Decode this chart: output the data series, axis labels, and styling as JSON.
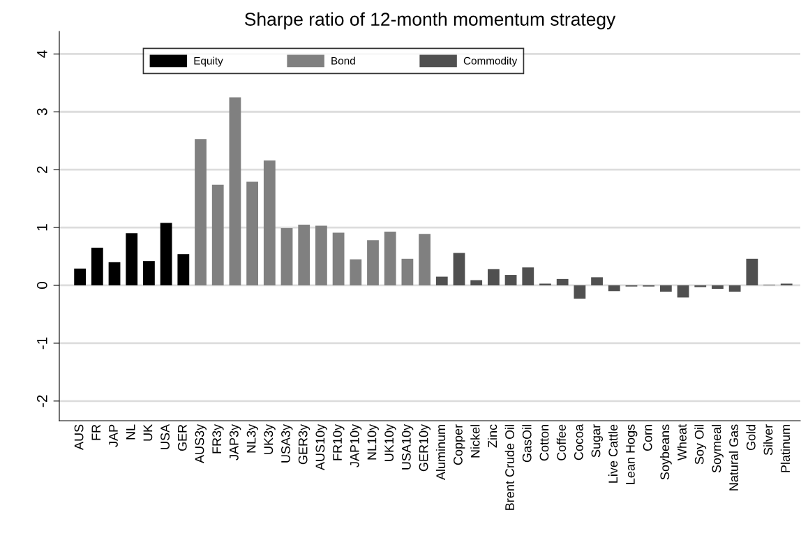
{
  "chart_data": {
    "type": "bar",
    "title": "Sharpe ratio of 12-month momentum strategy",
    "categories": [
      "AUS",
      "FR",
      "JAP",
      "NL",
      "UK",
      "USA",
      "GER",
      "AUS3y",
      "FR3y",
      "JAP3y",
      "NL3y",
      "UK3y",
      "USA3y",
      "GER3y",
      "AUS10y",
      "FR10y",
      "JAP10y",
      "NL10y",
      "UK10y",
      "USA10y",
      "GER10y",
      "Aluminum",
      "Copper",
      "Nickel",
      "Zinc",
      "Brent Crude Oil",
      "GasOil",
      "Cotton",
      "Coffee",
      "Cocoa",
      "Sugar",
      "Live Cattle",
      "Lean Hogs",
      "Corn",
      "Soybeans",
      "Wheat",
      "Soy Oil",
      "Soymeal",
      "Natural Gas",
      "Gold",
      "Silver",
      "Platinum"
    ],
    "series": [
      {
        "name": "Equity",
        "color": "#000000",
        "values": [
          0.29,
          0.65,
          0.4,
          0.9,
          0.42,
          1.08,
          0.54,
          null,
          null,
          null,
          null,
          null,
          null,
          null,
          null,
          null,
          null,
          null,
          null,
          null,
          null,
          null,
          null,
          null,
          null,
          null,
          null,
          null,
          null,
          null,
          null,
          null,
          null,
          null,
          null,
          null,
          null,
          null,
          null,
          null,
          null,
          null
        ]
      },
      {
        "name": "Bond",
        "color": "#808080",
        "values": [
          null,
          null,
          null,
          null,
          null,
          null,
          null,
          2.53,
          1.74,
          3.25,
          1.79,
          2.16,
          0.99,
          1.05,
          1.03,
          0.91,
          0.45,
          0.78,
          0.93,
          0.46,
          0.89,
          null,
          null,
          null,
          null,
          null,
          null,
          null,
          null,
          null,
          null,
          null,
          null,
          null,
          null,
          null,
          null,
          null,
          null,
          null,
          null,
          null
        ]
      },
      {
        "name": "Commodity",
        "color": "#505050",
        "values": [
          null,
          null,
          null,
          null,
          null,
          null,
          null,
          null,
          null,
          null,
          null,
          null,
          null,
          null,
          null,
          null,
          null,
          null,
          null,
          null,
          null,
          0.15,
          0.56,
          0.09,
          0.28,
          0.18,
          0.31,
          0.03,
          0.11,
          -0.23,
          0.14,
          -0.1,
          -0.02,
          -0.02,
          -0.11,
          -0.21,
          -0.03,
          -0.06,
          -0.11,
          0.46,
          0.01,
          0.03
        ]
      }
    ],
    "ylim": [
      -2.34,
      4.39
    ],
    "yticks": [
      -2,
      -1,
      0,
      1,
      2,
      3,
      4
    ],
    "grid": "y",
    "legend": "top"
  }
}
